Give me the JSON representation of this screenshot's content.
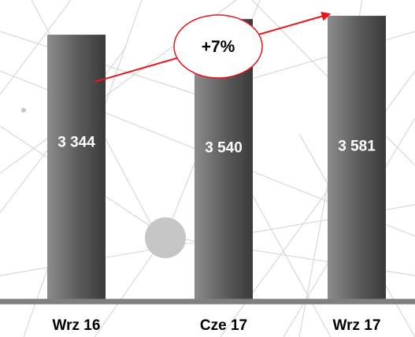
{
  "chart_data": {
    "type": "bar",
    "categories": [
      "Wrz 16",
      "Cze 17",
      "Wrz 17"
    ],
    "values": [
      3344,
      3540,
      3581
    ],
    "value_labels": [
      "3 344",
      "3 540",
      "3 581"
    ],
    "title": "",
    "xlabel": "",
    "ylabel": "",
    "ylim": [
      0,
      3700
    ],
    "grid": false,
    "legend": "none",
    "annotation": {
      "text": "+7%",
      "arrow": "trend-up"
    }
  },
  "colors": {
    "bar_light": "#8c8c8c",
    "bar_dark": "#3a3a3a",
    "axis": "#7f7f7f",
    "arrow": "#e8141b",
    "annotation_circle": "#e8141b",
    "background_lines": "#cfcfcf",
    "background_node": "#c4c4c4"
  }
}
